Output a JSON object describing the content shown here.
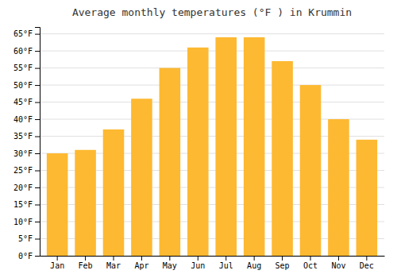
{
  "chart_data": {
    "type": "bar",
    "title": "Average monthly temperatures (°F ) in Krummin",
    "categories": [
      "Jan",
      "Feb",
      "Mar",
      "Apr",
      "May",
      "Jun",
      "Jul",
      "Aug",
      "Sep",
      "Oct",
      "Nov",
      "Dec"
    ],
    "values": [
      30,
      31,
      37,
      46,
      55,
      61,
      64,
      64,
      57,
      50,
      40,
      34
    ],
    "color": "#FDB931",
    "ylim": [
      0,
      67
    ],
    "yticks": [
      {
        "value": 0,
        "label": "0°F"
      },
      {
        "value": 5,
        "label": "5°F"
      },
      {
        "value": 10,
        "label": "10°F"
      },
      {
        "value": 15,
        "label": "15°F"
      },
      {
        "value": 20,
        "label": "20°F"
      },
      {
        "value": 25,
        "label": "25°F"
      },
      {
        "value": 30,
        "label": "30°F"
      },
      {
        "value": 35,
        "label": "35°F"
      },
      {
        "value": 40,
        "label": "40°F"
      },
      {
        "value": 45,
        "label": "45°F"
      },
      {
        "value": 50,
        "label": "50°F"
      },
      {
        "value": 55,
        "label": "55°F"
      },
      {
        "value": 60,
        "label": "60°F"
      },
      {
        "value": 65,
        "label": "65°F"
      }
    ],
    "grid": true
  }
}
